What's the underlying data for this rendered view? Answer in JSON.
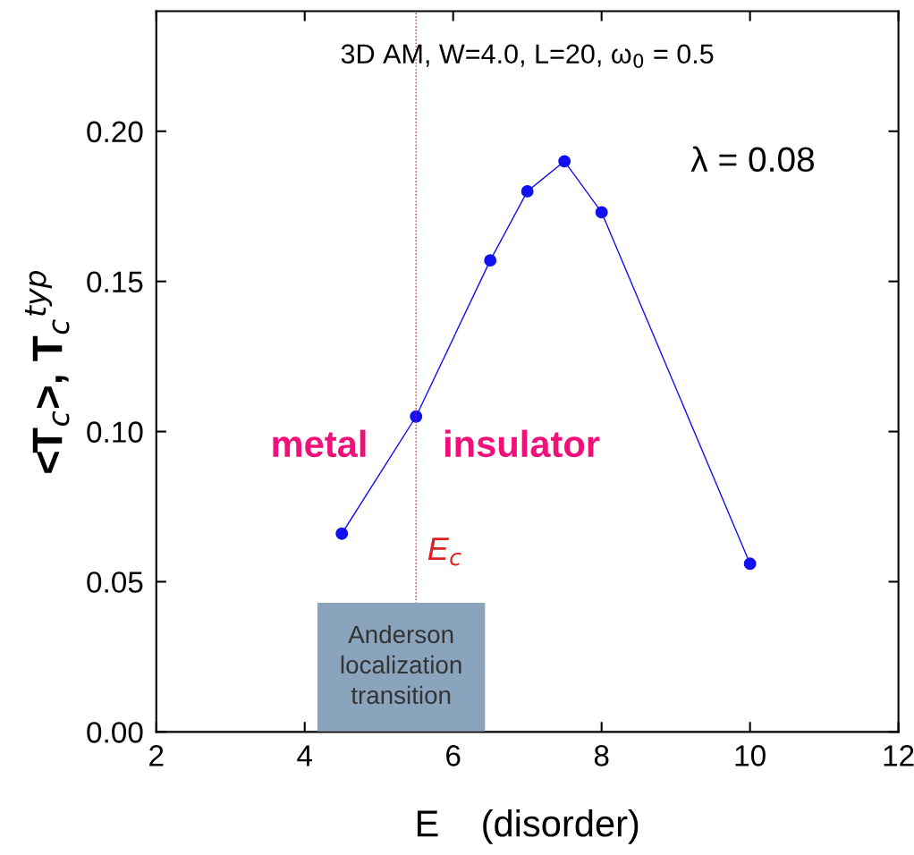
{
  "chart_data": {
    "type": "line",
    "title": "3D AM, W=4.0, L=20, ω$_{0}$ = 0.5",
    "xlabel": "E    (disorder)",
    "ylabel": "<T$_{c}$>, T$_{c}$$^{typ}$",
    "x": [
      4.5,
      5.5,
      6.5,
      7,
      7.5,
      8,
      10
    ],
    "series": [
      {
        "color": "#1010f0",
        "values": [
          0.066,
          0.105,
          0.157,
          0.18,
          0.19,
          0.173,
          0.056
        ]
      }
    ],
    "marker": "circle",
    "line_style": "solid",
    "xlim": [
      2,
      12
    ],
    "ylim": [
      0,
      0.24
    ],
    "xticks": [
      2,
      4,
      6,
      8,
      10,
      12
    ],
    "yticks": [
      {
        "value": 0,
        "label": "0.00"
      },
      {
        "value": 0.05,
        "label": "0.05"
      },
      {
        "value": 0.1,
        "label": "0.10"
      },
      {
        "value": 0.15,
        "label": "0.15"
      },
      {
        "value": 0.2,
        "label": "0.20"
      }
    ],
    "ref_lines": [
      {
        "axis": "x",
        "value": 5.5,
        "label": "E$_{c}$",
        "color": "#e02020",
        "line_style": "dotted"
      }
    ],
    "annotations": [
      "λ = 0.08",
      "metal",
      "insulator",
      "Anderson\nlocalization\ntransition"
    ],
    "grid": false,
    "legend": false
  }
}
